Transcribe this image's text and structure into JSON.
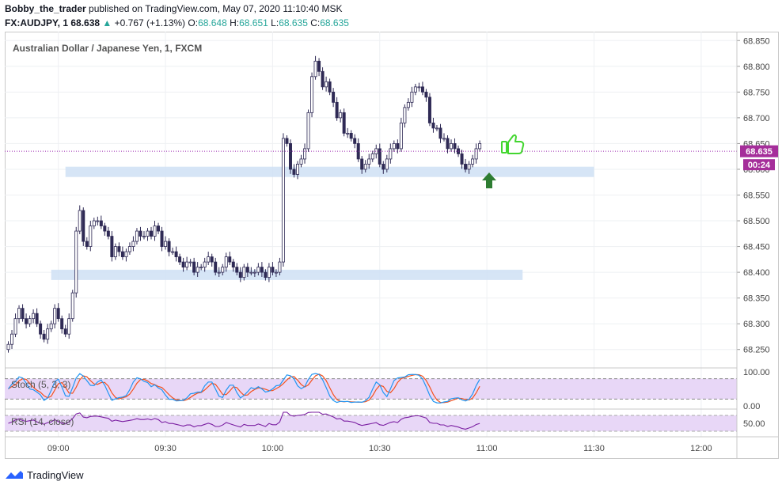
{
  "header": {
    "user": "Bobby_the_trader",
    "published_text": "published on TradingView.com, May 07, 2020 11:10:40 MSK",
    "symbol": "FX:AUDJPY, 1",
    "price": "68.638",
    "change": "+0.767 (+1.13%)",
    "o_label": "O:",
    "o": "68.648",
    "h_label": "H:",
    "h": "68.651",
    "l_label": "L:",
    "l": "68.635",
    "c_label": "C:",
    "c": "68.635"
  },
  "chart_title": "Australian Dollar / Japanese Yen, 1, FXCM",
  "price_badge": "68.635",
  "timer_badge": "00:24",
  "stoch_label": "Stoch (5, 3, 3)",
  "rsi_label": "RSI (14, close)",
  "footer_brand": "TradingView",
  "colors": {
    "candle": "#2f2a55",
    "zone": "#cfe0f5",
    "price_line": "#9c27b0",
    "badge": "#a52e9a",
    "stoch_k": "#2196f3",
    "stoch_d": "#f4511e",
    "osc_band": "#e8d7f7",
    "rsi_line": "#7b1fa2",
    "thumb": "#43d630",
    "arrow": "#2e7d32"
  },
  "icons": {
    "thumb": "thumbs-up-icon",
    "arrow": "up-arrow-icon",
    "logo": "tradingview-logo-icon"
  },
  "chart_data": {
    "type": "candlestick",
    "price_axis": [
      "68.850",
      "68.800",
      "68.750",
      "68.700",
      "68.650",
      "68.600",
      "68.550",
      "68.500",
      "68.450",
      "68.400",
      "68.350",
      "68.300",
      "68.250"
    ],
    "ylim": [
      68.225,
      68.855
    ],
    "time_axis": [
      "09:00",
      "09:30",
      "10:00",
      "10:30",
      "11:00",
      "11:30",
      "12:00"
    ],
    "stoch_axis": [
      "100.00",
      "0.00"
    ],
    "rsi_axis": [
      "50.00"
    ],
    "last_price": 68.635,
    "zones": [
      {
        "start": "09:02",
        "end": "11:30",
        "low": 68.585,
        "high": 68.605
      },
      {
        "start": "08:58",
        "end": "11:10",
        "low": 68.385,
        "high": 68.405
      }
    ],
    "candles_close": [
      68.26,
      68.28,
      68.31,
      68.33,
      68.31,
      68.3,
      68.31,
      68.32,
      68.3,
      68.28,
      68.27,
      68.29,
      68.3,
      68.33,
      68.31,
      68.29,
      68.28,
      68.31,
      68.36,
      68.48,
      68.52,
      68.46,
      68.45,
      68.49,
      68.5,
      68.5,
      68.49,
      68.48,
      68.47,
      68.43,
      68.45,
      68.44,
      68.43,
      68.44,
      68.45,
      68.46,
      68.48,
      68.47,
      68.47,
      68.48,
      68.47,
      68.49,
      68.48,
      68.45,
      68.46,
      68.44,
      68.44,
      68.43,
      68.42,
      68.41,
      68.42,
      68.42,
      68.4,
      68.41,
      68.41,
      68.42,
      68.43,
      68.42,
      68.4,
      68.4,
      68.41,
      68.43,
      68.42,
      68.41,
      68.4,
      68.39,
      68.41,
      68.4,
      68.4,
      68.4,
      68.41,
      68.4,
      68.39,
      68.41,
      68.4,
      68.4,
      68.42,
      68.66,
      68.65,
      68.6,
      68.59,
      68.61,
      68.62,
      68.64,
      68.71,
      68.78,
      68.81,
      68.79,
      68.76,
      68.77,
      68.75,
      68.73,
      68.7,
      68.71,
      68.67,
      68.67,
      68.66,
      68.65,
      68.62,
      68.6,
      68.61,
      68.62,
      68.63,
      68.64,
      68.61,
      68.6,
      68.62,
      68.64,
      68.65,
      68.64,
      68.69,
      68.72,
      68.73,
      68.75,
      68.76,
      68.76,
      68.75,
      68.74,
      68.69,
      68.68,
      68.68,
      68.66,
      68.66,
      68.64,
      68.65,
      68.64,
      68.63,
      68.61,
      68.6,
      68.61,
      68.62,
      68.64,
      68.65
    ]
  }
}
